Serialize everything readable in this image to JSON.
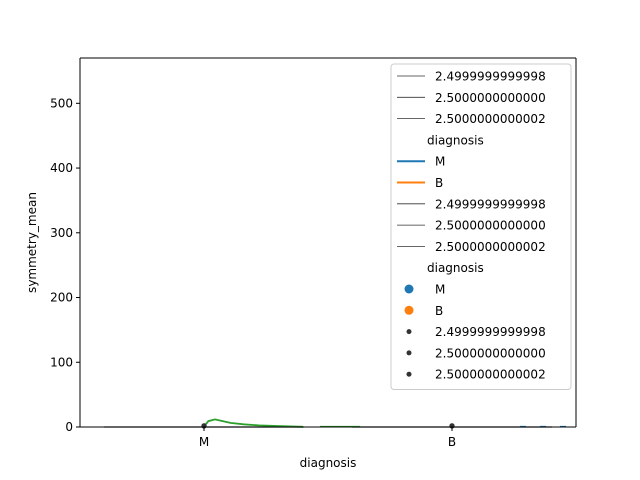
{
  "chart_data": {
    "type": "scatter",
    "title": "",
    "xlabel": "diagnosis",
    "ylabel": "symmetry_mean",
    "categories": [
      "M",
      "B"
    ],
    "ylim": [
      0,
      570
    ],
    "yticks": [
      0,
      100,
      200,
      300,
      400,
      500
    ],
    "grid": false,
    "legend_placement": "top-right",
    "series": [
      {
        "name": "M",
        "color": "#1f77b4",
        "values": [
          0.2,
          0.2
        ]
      },
      {
        "name": "B",
        "color": "#ff7f0e",
        "values": [
          0.18,
          0.18
        ]
      }
    ],
    "density": {
      "color": "#2ca02c",
      "x": [
        0.0,
        0.02,
        0.05,
        0.08,
        0.12,
        0.18,
        0.25,
        0.35,
        0.45
      ],
      "y": [
        0.5,
        6.0,
        7.8,
        6.2,
        4.2,
        2.8,
        1.6,
        0.8,
        0.2
      ]
    },
    "legend": [
      {
        "kind": "line-thin",
        "label": "2.4999999999998"
      },
      {
        "kind": "line-thin",
        "label": "2.5000000000000"
      },
      {
        "kind": "line-thin",
        "label": "2.5000000000002"
      },
      {
        "kind": "header",
        "label": "diagnosis"
      },
      {
        "kind": "line",
        "label": "M",
        "color": "#1f77b4"
      },
      {
        "kind": "line",
        "label": "B",
        "color": "#ff7f0e"
      },
      {
        "kind": "line-thin",
        "label": "2.4999999999998"
      },
      {
        "kind": "line-thin",
        "label": "2.5000000000000"
      },
      {
        "kind": "line-thin",
        "label": "2.5000000000002"
      },
      {
        "kind": "header",
        "label": "diagnosis"
      },
      {
        "kind": "dot",
        "label": "M",
        "color": "#1f77b4"
      },
      {
        "kind": "dot",
        "label": "B",
        "color": "#ff7f0e"
      },
      {
        "kind": "dot-small",
        "label": "2.4999999999998",
        "color": "#333333"
      },
      {
        "kind": "dot-small",
        "label": "2.5000000000000",
        "color": "#333333"
      },
      {
        "kind": "dot-small",
        "label": "2.5000000000002",
        "color": "#333333"
      }
    ]
  }
}
